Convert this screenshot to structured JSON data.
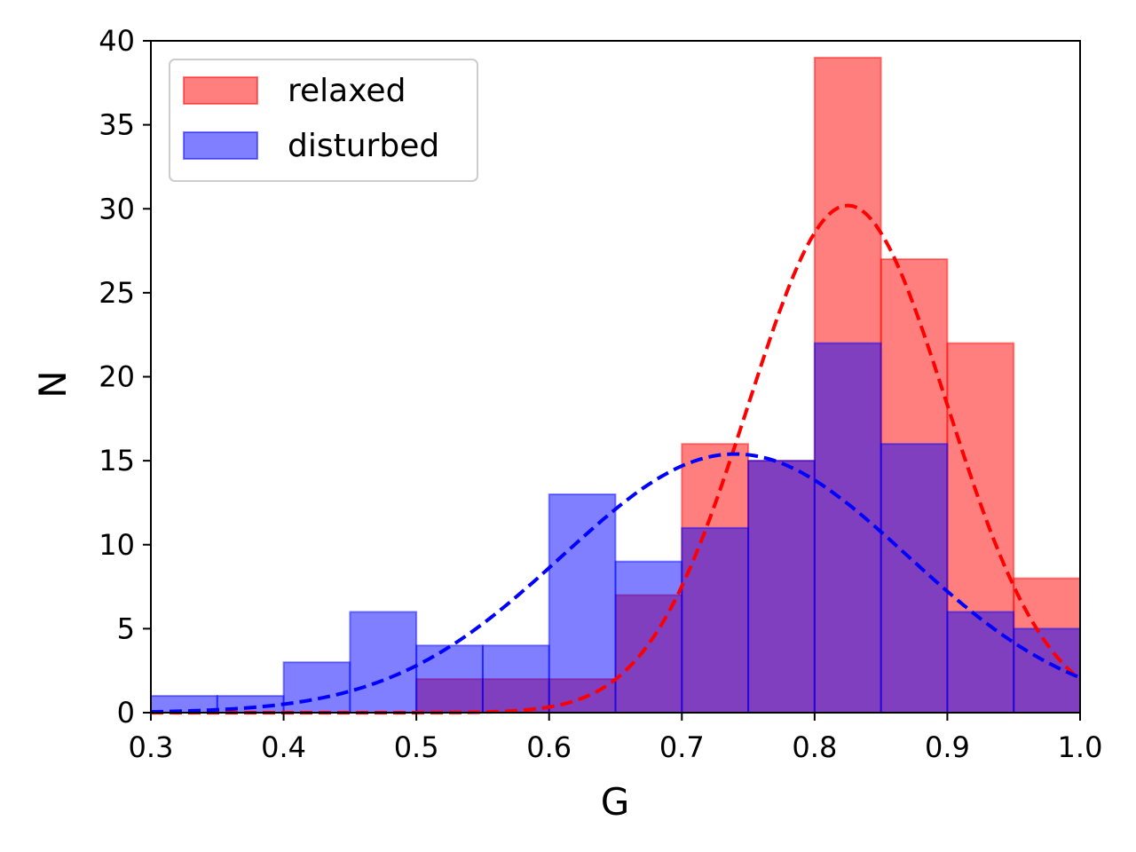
{
  "chart_data": {
    "type": "histogram",
    "xlabel": "G",
    "ylabel": "N",
    "xlim": [
      0.3,
      1.0
    ],
    "ylim": [
      0,
      40
    ],
    "grid": false,
    "legend_position": "top-left",
    "xticks": [
      "0.3",
      "0.4",
      "0.5",
      "0.6",
      "0.7",
      "0.8",
      "0.9",
      "1.0"
    ],
    "yticks": [
      "0",
      "5",
      "10",
      "15",
      "20",
      "25",
      "30",
      "35",
      "40"
    ],
    "bin_edges": [
      0.3,
      0.35,
      0.4,
      0.45,
      0.5,
      0.55,
      0.6,
      0.65,
      0.7,
      0.75,
      0.8,
      0.85,
      0.9,
      0.95,
      1.0
    ],
    "series": [
      {
        "name": "relaxed",
        "color": "#ff0000",
        "values": [
          0,
          0,
          0,
          0,
          2,
          2,
          2,
          7,
          16,
          15,
          39,
          27,
          22,
          8
        ],
        "fit": {
          "type": "gaussian",
          "mean": 0.825,
          "sigma": 0.075,
          "amplitude": 30.2
        }
      },
      {
        "name": "disturbed",
        "color": "#0000ff",
        "values": [
          1,
          1,
          3,
          6,
          4,
          4,
          13,
          9,
          11,
          15,
          22,
          16,
          6,
          5
        ],
        "fit": {
          "type": "gaussian",
          "mean": 0.74,
          "sigma": 0.13,
          "amplitude": 15.4
        }
      }
    ]
  }
}
